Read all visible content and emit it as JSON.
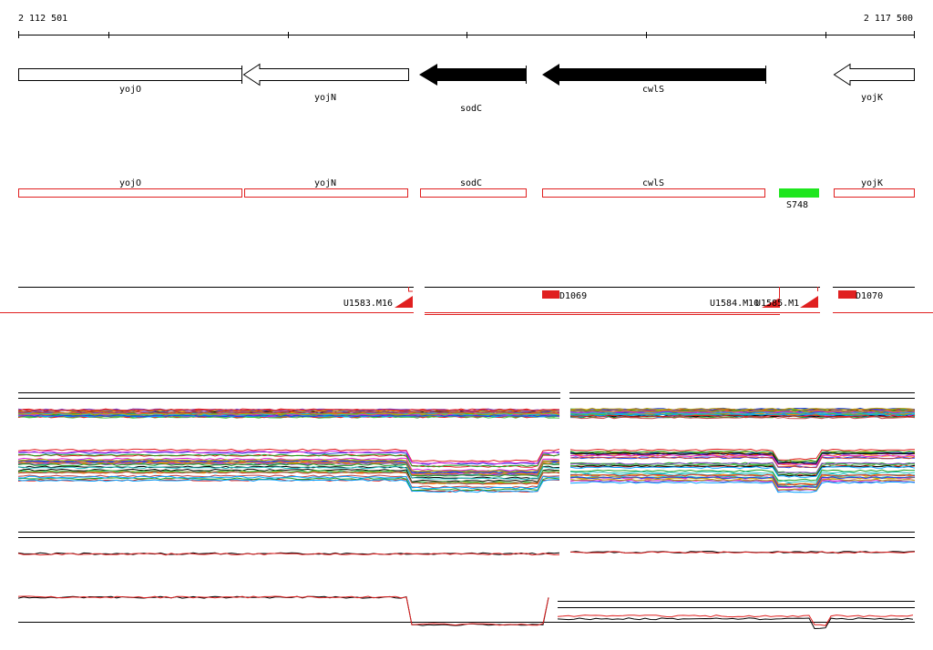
{
  "ruler": {
    "start": "2 112 501",
    "end": "2 117 500"
  },
  "genes": [
    {
      "label": "yojO"
    },
    {
      "label": "yojN"
    },
    {
      "label": "sodC"
    },
    {
      "label": "cwlS"
    },
    {
      "label": "yojK"
    }
  ],
  "annotations": [
    {
      "label": "yojO"
    },
    {
      "label": "yojN"
    },
    {
      "label": "sodC"
    },
    {
      "label": "cwlS"
    },
    {
      "label": "S748"
    },
    {
      "label": "yojK"
    }
  ],
  "probes": [
    {
      "label": "U1583.M16"
    },
    {
      "label": "D1069"
    },
    {
      "label": "U1584.M10"
    },
    {
      "label": "U1585.M1"
    },
    {
      "label": "D1070"
    }
  ]
}
